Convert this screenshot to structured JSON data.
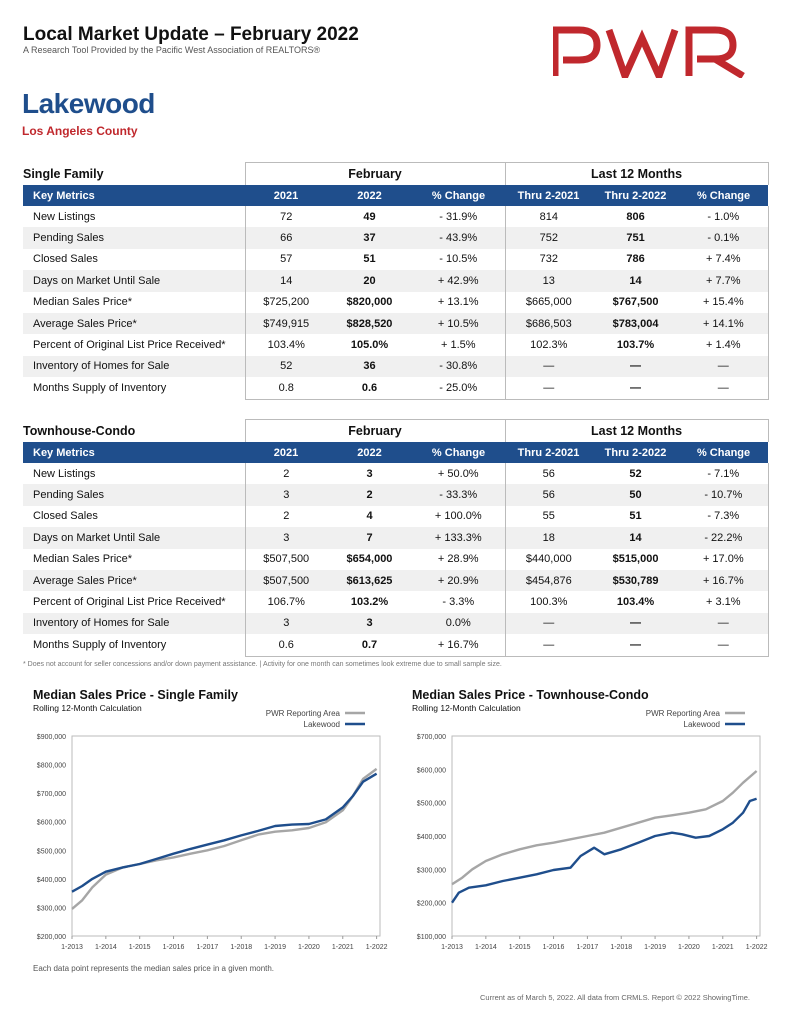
{
  "header": {
    "title": "Local Market Update – February 2022",
    "subtitle": "A Research Tool Provided by the Pacific West Association of REALTORS®",
    "logo_text": "PWR",
    "logo_color": "#c0282d"
  },
  "area": {
    "city": "Lakewood",
    "county": "Los Angeles County"
  },
  "group_labels": {
    "feb": "February",
    "l12": "Last 12 Months"
  },
  "columns": [
    "Key Metrics",
    "2021",
    "2022",
    "% Change",
    "Thru 2-2021",
    "Thru 2-2022",
    "% Change"
  ],
  "tables": [
    {
      "name": "Single Family",
      "rows": [
        [
          "New Listings",
          "72",
          "49",
          "- 31.9%",
          "814",
          "806",
          "- 1.0%"
        ],
        [
          "Pending Sales",
          "66",
          "37",
          "- 43.9%",
          "752",
          "751",
          "- 0.1%"
        ],
        [
          "Closed Sales",
          "57",
          "51",
          "- 10.5%",
          "732",
          "786",
          "+ 7.4%"
        ],
        [
          "Days on Market Until Sale",
          "14",
          "20",
          "+ 42.9%",
          "13",
          "14",
          "+ 7.7%"
        ],
        [
          "Median Sales Price*",
          "$725,200",
          "$820,000",
          "+ 13.1%",
          "$665,000",
          "$767,500",
          "+ 15.4%"
        ],
        [
          "Average Sales Price*",
          "$749,915",
          "$828,520",
          "+ 10.5%",
          "$686,503",
          "$783,004",
          "+ 14.1%"
        ],
        [
          "Percent of Original List Price Received*",
          "103.4%",
          "105.0%",
          "+ 1.5%",
          "102.3%",
          "103.7%",
          "+ 1.4%"
        ],
        [
          "Inventory of Homes for Sale",
          "52",
          "36",
          "- 30.8%",
          "—",
          "—",
          "—"
        ],
        [
          "Months Supply of Inventory",
          "0.8",
          "0.6",
          "- 25.0%",
          "—",
          "—",
          "—"
        ]
      ]
    },
    {
      "name": "Townhouse-Condo",
      "rows": [
        [
          "New Listings",
          "2",
          "3",
          "+ 50.0%",
          "56",
          "52",
          "- 7.1%"
        ],
        [
          "Pending Sales",
          "3",
          "2",
          "- 33.3%",
          "56",
          "50",
          "- 10.7%"
        ],
        [
          "Closed Sales",
          "2",
          "4",
          "+ 100.0%",
          "55",
          "51",
          "- 7.3%"
        ],
        [
          "Days on Market Until Sale",
          "3",
          "7",
          "+ 133.3%",
          "18",
          "14",
          "- 22.2%"
        ],
        [
          "Median Sales Price*",
          "$507,500",
          "$654,000",
          "+ 28.9%",
          "$440,000",
          "$515,000",
          "+ 17.0%"
        ],
        [
          "Average Sales Price*",
          "$507,500",
          "$613,625",
          "+ 20.9%",
          "$454,876",
          "$530,789",
          "+ 16.7%"
        ],
        [
          "Percent of Original List Price Received*",
          "106.7%",
          "103.2%",
          "- 3.3%",
          "100.3%",
          "103.4%",
          "+ 3.1%"
        ],
        [
          "Inventory of Homes for Sale",
          "3",
          "3",
          "0.0%",
          "—",
          "—",
          "—"
        ],
        [
          "Months Supply of Inventory",
          "0.6",
          "0.7",
          "+ 16.7%",
          "—",
          "—",
          "—"
        ]
      ]
    }
  ],
  "footnote": "* Does not account for seller concessions and/or down payment assistance. | Activity for one month can sometimes look extreme due to small sample size.",
  "chart_note": "Each data point represents the median sales price in a given month.",
  "credit": "Current as of March 5, 2022. All data from CRMLS. Report © 2022 ShowingTime.",
  "chart_data": [
    {
      "type": "line",
      "title": "Median Sales Price - Single Family",
      "subtitle": "Rolling 12-Month Calculation",
      "x_ticks": [
        "1-2013",
        "1-2014",
        "1-2015",
        "1-2016",
        "1-2017",
        "1-2018",
        "1-2019",
        "1-2020",
        "1-2021",
        "1-2022"
      ],
      "y_ticks": [
        "$200,000",
        "$300,000",
        "$400,000",
        "$500,000",
        "$600,000",
        "$700,000",
        "$800,000",
        "$900,000"
      ],
      "ylim": [
        200000,
        900000
      ],
      "xlim": [
        2013.0,
        2022.1
      ],
      "grid": false,
      "legend_position": "top-right",
      "series": [
        {
          "name": "PWR Reporting Area",
          "color": "#a6a6a6",
          "x": [
            2013.0,
            2013.3,
            2013.6,
            2014.0,
            2014.5,
            2015.0,
            2015.5,
            2016.0,
            2016.5,
            2017.0,
            2017.5,
            2018.0,
            2018.5,
            2019.0,
            2019.5,
            2020.0,
            2020.5,
            2021.0,
            2021.3,
            2021.6,
            2022.0
          ],
          "values": [
            295000,
            325000,
            370000,
            415000,
            440000,
            452000,
            465000,
            475000,
            488000,
            500000,
            515000,
            535000,
            555000,
            565000,
            570000,
            578000,
            598000,
            640000,
            690000,
            750000,
            785000
          ]
        },
        {
          "name": "Lakewood",
          "color": "#1f4e8c",
          "x": [
            2013.0,
            2013.3,
            2013.6,
            2014.0,
            2014.5,
            2015.0,
            2015.5,
            2016.0,
            2016.5,
            2017.0,
            2017.5,
            2018.0,
            2018.5,
            2019.0,
            2019.5,
            2020.0,
            2020.5,
            2021.0,
            2021.3,
            2021.6,
            2022.0
          ],
          "values": [
            355000,
            375000,
            400000,
            425000,
            440000,
            452000,
            470000,
            488000,
            505000,
            520000,
            535000,
            552000,
            568000,
            585000,
            590000,
            592000,
            608000,
            650000,
            690000,
            740000,
            768000
          ]
        }
      ]
    },
    {
      "type": "line",
      "title": "Median Sales Price - Townhouse-Condo",
      "subtitle": "Rolling 12-Month Calculation",
      "x_ticks": [
        "1-2013",
        "1-2014",
        "1-2015",
        "1-2016",
        "1-2017",
        "1-2018",
        "1-2019",
        "1-2020",
        "1-2021",
        "1-2022"
      ],
      "y_ticks": [
        "$100,000",
        "$200,000",
        "$300,000",
        "$400,000",
        "$500,000",
        "$600,000",
        "$700,000"
      ],
      "ylim": [
        100000,
        700000
      ],
      "xlim": [
        2013.0,
        2022.1
      ],
      "grid": false,
      "legend_position": "top-right",
      "series": [
        {
          "name": "PWR Reporting Area",
          "color": "#a6a6a6",
          "x": [
            2013.0,
            2013.3,
            2013.6,
            2014.0,
            2014.5,
            2015.0,
            2015.5,
            2016.0,
            2016.5,
            2017.0,
            2017.5,
            2018.0,
            2018.5,
            2019.0,
            2019.5,
            2020.0,
            2020.5,
            2021.0,
            2021.3,
            2021.6,
            2022.0
          ],
          "values": [
            255000,
            275000,
            300000,
            325000,
            345000,
            360000,
            372000,
            380000,
            390000,
            400000,
            410000,
            425000,
            440000,
            455000,
            462000,
            470000,
            480000,
            505000,
            530000,
            560000,
            595000
          ]
        },
        {
          "name": "Lakewood",
          "color": "#1f4e8c",
          "x": [
            2013.0,
            2013.2,
            2013.5,
            2014.0,
            2014.5,
            2015.0,
            2015.5,
            2016.0,
            2016.5,
            2016.8,
            2017.2,
            2017.5,
            2018.0,
            2018.5,
            2019.0,
            2019.5,
            2019.8,
            2020.2,
            2020.6,
            2021.0,
            2021.3,
            2021.6,
            2021.8,
            2022.0
          ],
          "values": [
            200000,
            230000,
            245000,
            252000,
            265000,
            275000,
            285000,
            298000,
            305000,
            340000,
            365000,
            345000,
            360000,
            380000,
            400000,
            410000,
            405000,
            395000,
            400000,
            420000,
            440000,
            470000,
            505000,
            512000
          ]
        }
      ]
    }
  ]
}
